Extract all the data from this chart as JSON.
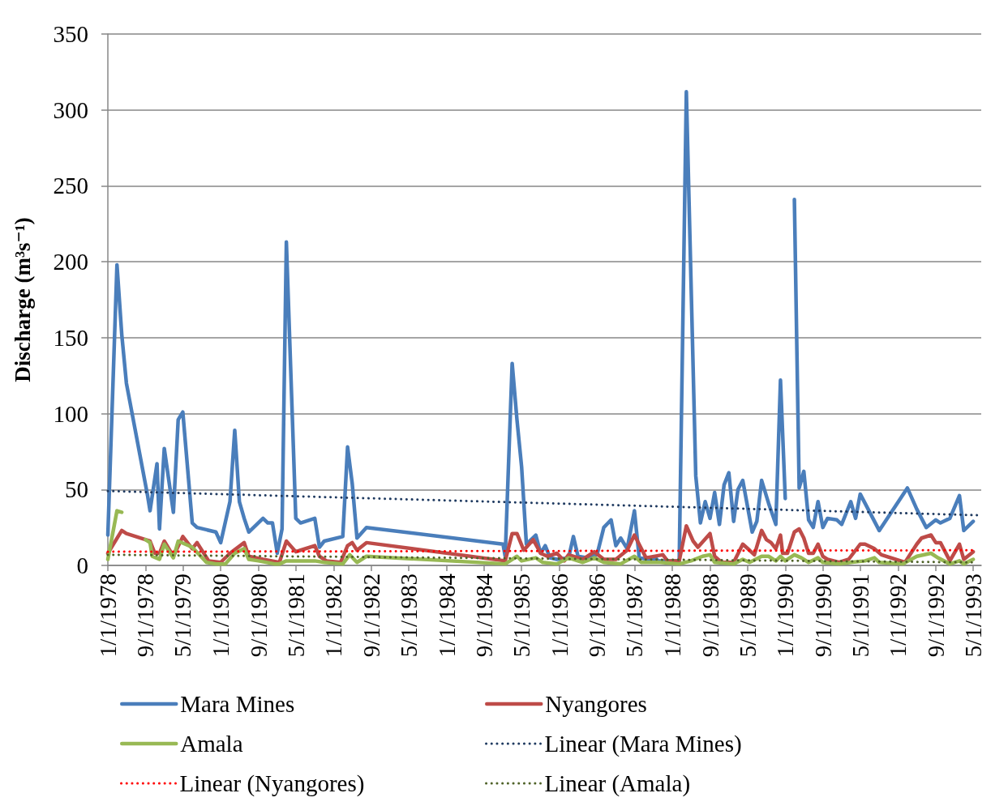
{
  "chart_data": {
    "type": "line",
    "ylabel": "Discharge (m³s⁻¹)",
    "xlim": [
      "1978-01-01",
      "1993-06-22"
    ],
    "xticks": [
      {
        "value": "1978-01-01",
        "label": "1/1/1978"
      },
      {
        "value": "1978-09-01",
        "label": "9/1/1978"
      },
      {
        "value": "1979-05-01",
        "label": "5/1/1979"
      },
      {
        "value": "1980-01-01",
        "label": "1/1/1980"
      },
      {
        "value": "1980-09-01",
        "label": "9/1/1980"
      },
      {
        "value": "1981-05-01",
        "label": "5/1/1981"
      },
      {
        "value": "1982-01-01",
        "label": "1/1/1982"
      },
      {
        "value": "1982-09-01",
        "label": "9/1/1982"
      },
      {
        "value": "1983-05-01",
        "label": "5/1/1983"
      },
      {
        "value": "1984-01-01",
        "label": "1/1/1984"
      },
      {
        "value": "1984-09-01",
        "label": "9/1/1984"
      },
      {
        "value": "1985-05-01",
        "label": "5/1/1985"
      },
      {
        "value": "1986-01-01",
        "label": "1/1/1986"
      },
      {
        "value": "1986-09-01",
        "label": "9/1/1986"
      },
      {
        "value": "1987-05-01",
        "label": "5/1/1987"
      },
      {
        "value": "1988-01-01",
        "label": "1/1/1988"
      },
      {
        "value": "1988-09-01",
        "label": "9/1/1988"
      },
      {
        "value": "1989-05-01",
        "label": "5/1/1989"
      },
      {
        "value": "1990-01-01",
        "label": "1/1/1990"
      },
      {
        "value": "1990-09-01",
        "label": "9/1/1990"
      },
      {
        "value": "1991-05-01",
        "label": "5/1/1991"
      },
      {
        "value": "1992-01-01",
        "label": "1/1/1992"
      },
      {
        "value": "1992-09-01",
        "label": "9/1/1992"
      },
      {
        "value": "1993-05-01",
        "label": "5/1/1993"
      }
    ],
    "ylim": [
      0,
      350
    ],
    "yticks": [
      0,
      50,
      100,
      150,
      200,
      250,
      300,
      350
    ],
    "grid": "y",
    "legend": "bottom",
    "marker": "none",
    "series": [
      {
        "name": "Mara Mines",
        "color": "#4a7ebb",
        "x": [
          "1978-01-01",
          "1978-03-01",
          "1978-04-01",
          "1978-05-01",
          "1978-09-15",
          "1978-10-01",
          "1978-11-15",
          "1978-12-01",
          "1979-01-01",
          "1979-03-01",
          "1979-04-01",
          "1979-05-01",
          "1979-07-01",
          "1979-08-01",
          "1979-12-01",
          "1980-01-01",
          "1980-03-01",
          "1980-04-01",
          "1980-05-01",
          "1980-06-01",
          "1980-07-01",
          "1980-10-01",
          "1980-11-01",
          "1980-12-01",
          "1981-01-01",
          "1981-02-01",
          "1981-03-01",
          "1981-05-01",
          "1981-06-01",
          "1981-09-01",
          "1981-10-01",
          "1981-11-01",
          "1982-03-01",
          "1982-04-01",
          "1982-05-01",
          "1982-06-01",
          "1982-08-01",
          "1985-01-01",
          "1985-01-15",
          "1985-03-01",
          "1985-04-01",
          "1985-05-01",
          "1985-06-01",
          "1985-08-01",
          "1985-09-01",
          "1985-10-01",
          "1985-11-01",
          "1985-12-15",
          "1986-03-01",
          "1986-04-01",
          "1986-05-01",
          "1986-07-01",
          "1986-09-01",
          "1986-10-15",
          "1986-12-01",
          "1987-01-01",
          "1987-02-01",
          "1987-03-15",
          "1987-05-01",
          "1987-06-01",
          "1987-08-01",
          "1987-09-15",
          "1987-10-01",
          "1988-02-15",
          "1988-04-01",
          "1988-06-01",
          "1988-07-01",
          "1988-08-01",
          "1988-09-01",
          "1988-10-01",
          "1988-11-01",
          "1988-12-01",
          "1989-01-01",
          "1989-02-01",
          "1989-03-01",
          "1989-04-01",
          "1989-06-01",
          "1989-07-01",
          "1989-08-01",
          "1989-09-15",
          "1989-11-01",
          "1989-12-01",
          "1990-01-01",
          "1990-02-01",
          "1990-03-01",
          "1990-04-01",
          "1990-05-01",
          "1990-06-01",
          "1990-07-01",
          "1990-08-01",
          "1990-09-01",
          "1990-10-01",
          "1990-12-01",
          "1991-01-01",
          "1991-03-01",
          "1991-04-01",
          "1991-05-01",
          "1991-09-01",
          "1992-03-01",
          "1992-05-01",
          "1992-07-01",
          "1992-09-01",
          "1992-10-01",
          "1992-12-01",
          "1993-02-01",
          "1993-03-01",
          "1993-05-01"
        ],
        "values": [
          20,
          198,
          152,
          120,
          46,
          36,
          67,
          24,
          77,
          35,
          96,
          101,
          28,
          25,
          22,
          15,
          42,
          89,
          42,
          31,
          22,
          31,
          28,
          28,
          8,
          24,
          213,
          31,
          28,
          31,
          12,
          16,
          19,
          78,
          54,
          18,
          25,
          14,
          6,
          133,
          96,
          65,
          14,
          20,
          8,
          13,
          5,
          4,
          5,
          19,
          6,
          5,
          7,
          25,
          30,
          13,
          18,
          11,
          36,
          5,
          4,
          5,
          3,
          3,
          312,
          59,
          28,
          42,
          31,
          48,
          27,
          53,
          61,
          29,
          50,
          56,
          22,
          29,
          56,
          41,
          27,
          122,
          44,
          null,
          241,
          51,
          62,
          30,
          25,
          42,
          25,
          31,
          30,
          27,
          42,
          31,
          47,
          23,
          51,
          37,
          25,
          30,
          28,
          31,
          46,
          23,
          29
        ]
      },
      {
        "name": "Nyangores",
        "color": "#be4b48",
        "x": [
          "1978-01-01",
          "1978-04-01",
          "1978-05-01",
          "1978-09-01",
          "1978-10-01",
          "1978-11-01",
          "1978-12-01",
          "1979-01-01",
          "1979-03-01",
          "1979-05-01",
          "1979-07-01",
          "1979-08-01",
          "1979-10-15",
          "1980-01-01",
          "1980-03-01",
          "1980-06-01",
          "1980-07-01",
          "1980-10-01",
          "1981-01-15",
          "1981-03-01",
          "1981-05-01",
          "1981-06-01",
          "1981-09-01",
          "1981-10-01",
          "1981-11-15",
          "1982-02-15",
          "1982-04-01",
          "1982-05-01",
          "1982-06-01",
          "1982-08-01",
          "1985-01-15",
          "1985-03-01",
          "1985-04-01",
          "1985-05-15",
          "1985-07-15",
          "1985-09-01",
          "1985-10-15",
          "1985-12-15",
          "1986-02-01",
          "1986-03-01",
          "1986-06-01",
          "1986-08-15",
          "1986-10-15",
          "1987-01-01",
          "1987-03-15",
          "1987-05-01",
          "1987-07-15",
          "1987-11-01",
          "1987-12-01",
          "1988-02-15",
          "1988-04-01",
          "1988-05-15",
          "1988-06-15",
          "1988-09-01",
          "1988-10-01",
          "1988-11-15",
          "1989-02-01",
          "1989-04-01",
          "1989-05-15",
          "1989-06-15",
          "1989-08-01",
          "1989-09-01",
          "1989-10-01",
          "1989-11-01",
          "1989-12-01",
          "1989-12-15",
          "1990-01-15",
          "1990-03-01",
          "1990-04-01",
          "1990-05-01",
          "1990-06-01",
          "1990-07-01",
          "1990-08-01",
          "1990-09-01",
          "1990-10-01",
          "1990-12-15",
          "1991-02-15",
          "1991-05-01",
          "1991-06-01",
          "1991-08-01",
          "1991-09-15",
          "1992-02-15",
          "1992-05-01",
          "1992-06-01",
          "1992-08-01",
          "1992-09-01",
          "1992-10-01",
          "1992-12-01",
          "1993-02-01",
          "1993-03-01",
          "1993-05-01"
        ],
        "values": [
          8,
          23,
          21,
          17,
          16,
          8,
          8,
          16,
          6,
          19,
          11,
          15,
          3,
          2,
          8,
          15,
          6,
          4,
          2,
          16,
          9,
          10,
          13,
          6,
          3,
          2,
          13,
          15,
          10,
          15,
          3,
          21,
          21,
          10,
          17,
          8,
          6,
          8,
          3,
          7,
          4,
          9,
          4,
          4,
          10,
          20,
          5,
          7,
          3,
          3,
          26,
          16,
          12,
          21,
          6,
          2,
          2,
          14,
          10,
          7,
          23,
          17,
          15,
          11,
          20,
          8,
          8,
          22,
          24,
          18,
          8,
          8,
          14,
          6,
          4,
          2,
          4,
          14,
          14,
          11,
          7,
          2,
          14,
          18,
          20,
          15,
          15,
          3,
          14,
          4,
          9
        ]
      },
      {
        "name": "Amala",
        "color": "#98b954",
        "x": [
          "1978-01-01",
          "1978-03-01",
          "1978-04-01",
          "1978-06-01",
          "1978-09-01",
          "1978-10-01",
          "1978-10-15",
          "1978-12-01",
          "1979-01-01",
          "1979-03-01",
          "1979-04-01",
          "1979-07-01",
          "1979-10-01",
          "1979-12-01",
          "1980-02-01",
          "1980-04-01",
          "1980-06-01",
          "1980-07-01",
          "1980-09-01",
          "1980-12-15",
          "1981-01-15",
          "1981-03-01",
          "1981-06-01",
          "1981-09-01",
          "1981-11-01",
          "1982-03-01",
          "1982-04-15",
          "1982-06-01",
          "1982-08-01",
          "1985-01-15",
          "1985-04-01",
          "1985-05-01",
          "1985-08-01",
          "1985-09-15",
          "1985-12-15",
          "1986-03-01",
          "1986-06-01",
          "1986-08-15",
          "1986-10-15",
          "1987-02-01",
          "1987-05-01",
          "1987-06-15",
          "1987-10-15",
          "1988-02-15",
          "1988-05-01",
          "1988-07-15",
          "1988-09-01",
          "1988-10-01",
          "1989-02-01",
          "1989-04-01",
          "1989-05-15",
          "1989-08-01",
          "1989-09-15",
          "1989-11-01",
          "1989-12-01",
          "1990-01-01",
          "1990-03-01",
          "1990-04-15",
          "1990-06-01",
          "1990-08-01",
          "1990-09-01",
          "1990-12-15",
          "1991-03-01",
          "1991-06-01",
          "1991-08-01",
          "1991-09-01",
          "1992-02-01",
          "1992-05-01",
          "1992-08-01",
          "1992-09-15",
          "1992-12-01",
          "1993-02-01",
          "1993-03-01",
          "1993-05-01"
        ],
        "values": [
          4,
          36,
          35,
          null,
          17,
          15,
          6,
          4,
          14,
          5,
          16,
          12,
          2,
          1,
          1,
          8,
          11,
          4,
          3,
          1,
          1,
          3,
          3,
          3,
          2,
          1,
          7,
          2,
          6,
          1,
          6,
          3,
          5,
          2,
          1,
          5,
          2,
          5,
          2,
          1,
          6,
          2,
          2,
          1,
          3,
          6,
          7,
          2,
          1,
          4,
          2,
          6,
          6,
          3,
          6,
          3,
          7,
          5,
          2,
          5,
          2,
          1,
          2,
          3,
          5,
          2,
          1,
          6,
          8,
          5,
          1,
          3,
          1,
          4
        ]
      },
      {
        "name": "Linear (Mara Mines)",
        "color": "#1f3a60",
        "line_style": "dotted",
        "x": [
          "1978-01-01",
          "1993-06-15"
        ],
        "values": [
          49,
          33
        ]
      },
      {
        "name": "Linear (Nyangores)",
        "color": "#ff0000",
        "line_style": "dotted",
        "x": [
          "1978-01-01",
          "1993-05-01"
        ],
        "values": [
          9,
          10
        ]
      },
      {
        "name": "Linear (Amala)",
        "color": "#4f6228",
        "line_style": "dotted",
        "x": [
          "1978-01-01",
          "1993-05-01"
        ],
        "values": [
          7,
          2
        ]
      }
    ]
  }
}
